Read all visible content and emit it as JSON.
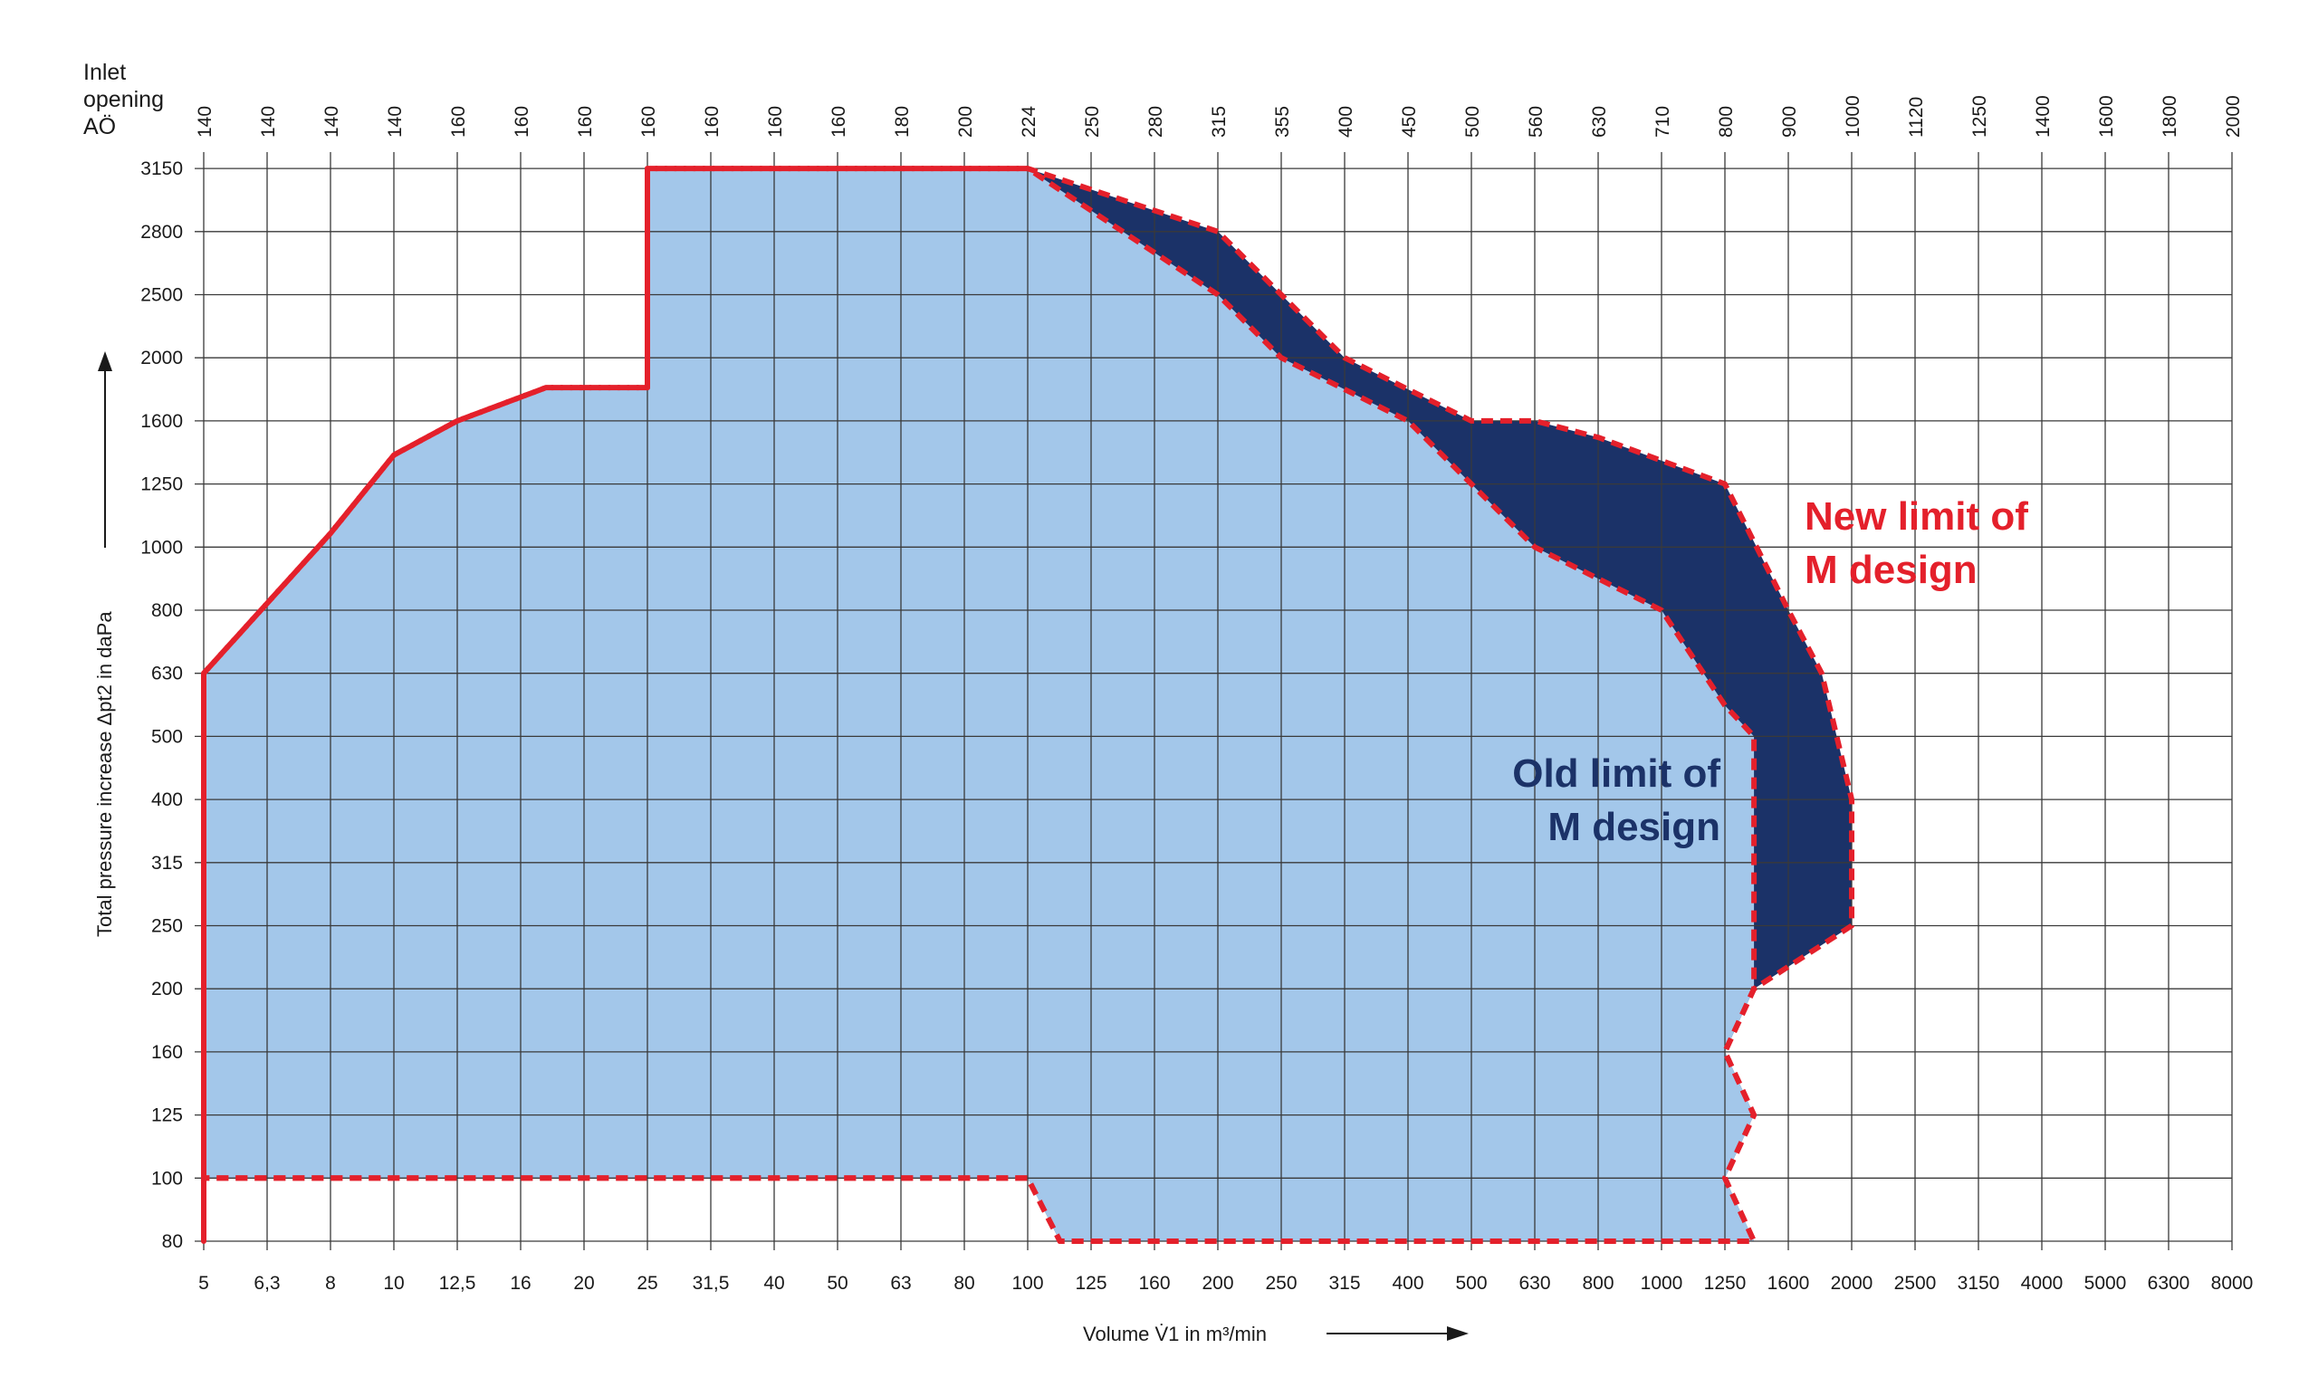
{
  "chart_data": {
    "type": "area",
    "header_label_lines": [
      "Inlet",
      "opening",
      "AÖ"
    ],
    "xlabel": "Volume V̇1 in m³/min",
    "ylabel": "Total pressure increase Δpt2 in daPa",
    "x_ticks": [
      "5",
      "6,3",
      "8",
      "10",
      "12,5",
      "16",
      "20",
      "25",
      "31,5",
      "40",
      "50",
      "63",
      "80",
      "100",
      "125",
      "160",
      "200",
      "250",
      "315",
      "400",
      "500",
      "630",
      "800",
      "1000",
      "1250",
      "1600",
      "2000",
      "2500",
      "3150",
      "4000",
      "5000",
      "6300",
      "8000"
    ],
    "y_ticks": [
      "80",
      "100",
      "125",
      "160",
      "200",
      "250",
      "315",
      "400",
      "500",
      "630",
      "800",
      "1000",
      "1250",
      "1600",
      "2000",
      "2500",
      "2800",
      "3150"
    ],
    "inlet_openings": [
      "140",
      "140",
      "140",
      "140",
      "160",
      "160",
      "160",
      "160",
      "160",
      "160",
      "160",
      "180",
      "200",
      "224",
      "250",
      "280",
      "315",
      "355",
      "400",
      "450",
      "500",
      "560",
      "630",
      "710",
      "800",
      "900",
      "1000",
      "1120",
      "1250",
      "1400",
      "1600",
      "1800",
      "2000"
    ],
    "series": [
      {
        "name": "Old limit of M design",
        "color": "#a3c7ea",
        "points": [
          [
            "5",
            "80"
          ],
          [
            "5",
            "100"
          ],
          [
            "100",
            "100"
          ],
          [
            "112",
            "80"
          ],
          [
            "1400",
            "80"
          ],
          [
            "1250",
            "100"
          ],
          [
            "1400",
            "125"
          ],
          [
            "1250",
            "160"
          ],
          [
            "1400",
            "200"
          ],
          [
            "1400",
            "500"
          ],
          [
            "1250",
            "560"
          ],
          [
            "1000",
            "800"
          ],
          [
            "630",
            "1000"
          ],
          [
            "500",
            "1250"
          ],
          [
            "400",
            "1600"
          ],
          [
            "250",
            "2000"
          ],
          [
            "200",
            "2500"
          ],
          [
            "100",
            "3150"
          ],
          [
            "25",
            "3150"
          ],
          [
            "25",
            "1800"
          ],
          [
            "17,5",
            "1800"
          ],
          [
            "12,5",
            "1600"
          ],
          [
            "10",
            "1400"
          ],
          [
            "8",
            "1050"
          ],
          [
            "5",
            "630"
          ]
        ]
      },
      {
        "name": "New limit of M design",
        "color": "#1b3268",
        "points": [
          [
            "5",
            "80"
          ],
          [
            "5",
            "100"
          ],
          [
            "100",
            "100"
          ],
          [
            "112",
            "80"
          ],
          [
            "1400",
            "80"
          ],
          [
            "1250",
            "100"
          ],
          [
            "1400",
            "125"
          ],
          [
            "1250",
            "160"
          ],
          [
            "1400",
            "200"
          ],
          [
            "2000",
            "250"
          ],
          [
            "2000",
            "400"
          ],
          [
            "1800",
            "630"
          ],
          [
            "1600",
            "800"
          ],
          [
            "1250",
            "1250"
          ],
          [
            "800",
            "1500"
          ],
          [
            "630",
            "1600"
          ],
          [
            "500",
            "1600"
          ],
          [
            "315",
            "2000"
          ],
          [
            "250",
            "2500"
          ],
          [
            "200",
            "2800"
          ],
          [
            "100",
            "3150"
          ],
          [
            "25",
            "3150"
          ],
          [
            "25",
            "1800"
          ],
          [
            "17,5",
            "1800"
          ],
          [
            "12,5",
            "1600"
          ],
          [
            "10",
            "1400"
          ],
          [
            "8",
            "1050"
          ],
          [
            "5",
            "630"
          ]
        ]
      }
    ],
    "annotations": {
      "new_limit": [
        "New limit of",
        "M design"
      ],
      "old_limit": [
        "Old limit of",
        "M design"
      ]
    },
    "colors": {
      "old_fill": "#a3c7ea",
      "new_fill": "#1b3268",
      "boundary_dashes": "#e4202b",
      "grid": "#3a3a3a"
    },
    "grid": true
  }
}
